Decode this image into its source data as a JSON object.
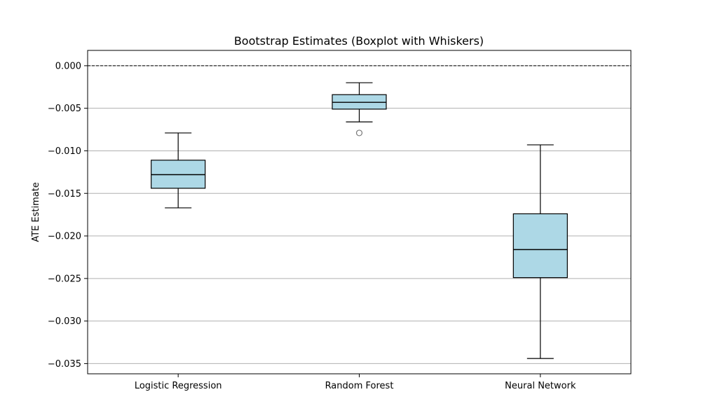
{
  "chart_data": {
    "type": "boxplot",
    "title": "Bootstrap Estimates (Boxplot with Whiskers)",
    "xlabel": "",
    "ylabel": "ATE Estimate",
    "ylim": [
      -0.0362,
      0.0018
    ],
    "yticks": [
      0.0,
      -0.005,
      -0.01,
      -0.015,
      -0.02,
      -0.025,
      -0.03,
      -0.035
    ],
    "ytick_labels": [
      "0.000",
      "−0.005",
      "−0.010",
      "−0.015",
      "−0.020",
      "−0.025",
      "−0.030",
      "−0.035"
    ],
    "categories": [
      "Logistic Regression",
      "Random Forest",
      "Neural Network"
    ],
    "boxes": [
      {
        "whisker_low": -0.0167,
        "q1": -0.0144,
        "median": -0.0128,
        "q3": -0.0111,
        "whisker_high": -0.0079,
        "outliers": []
      },
      {
        "whisker_low": -0.0066,
        "q1": -0.0051,
        "median": -0.0043,
        "q3": -0.0034,
        "whisker_high": -0.002,
        "outliers": [
          -0.0079
        ]
      },
      {
        "whisker_low": -0.0344,
        "q1": -0.0249,
        "median": -0.0216,
        "q3": -0.0174,
        "whisker_high": -0.0093,
        "outliers": []
      }
    ],
    "reference_line": {
      "y": 0.0,
      "style": "dashed"
    },
    "grid": {
      "y": true,
      "x": false
    },
    "colors": {
      "box_fill": "#add8e6",
      "box_edge": "#000000",
      "grid": "#b0b0b0",
      "outlier_edge": "#777777"
    }
  }
}
